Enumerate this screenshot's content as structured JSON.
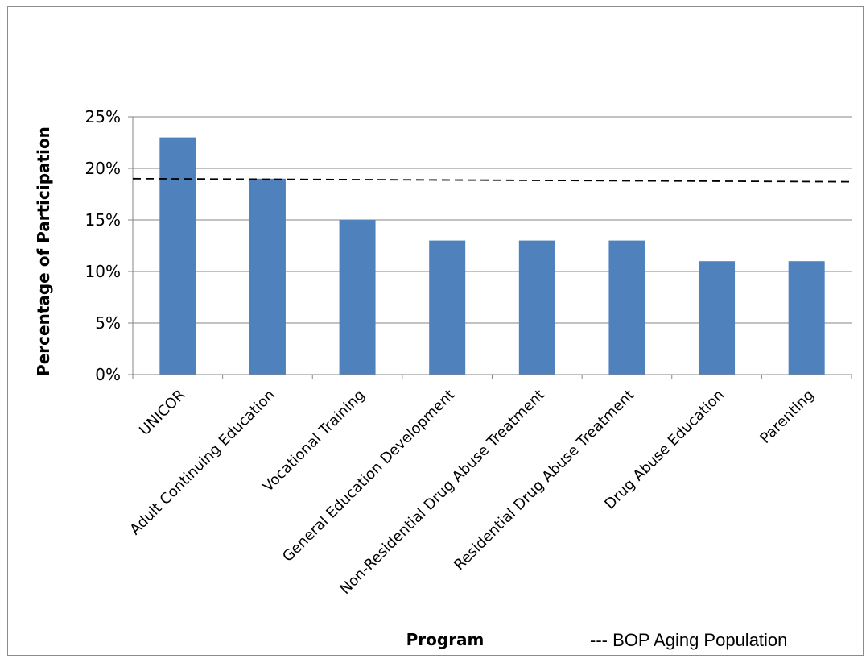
{
  "chart_data": {
    "type": "bar",
    "title": "",
    "xlabel": "Program",
    "ylabel": "Percentage of Participation",
    "categories": [
      "UNICOR",
      "Adult Continuing Education",
      "Vocational Training",
      "General Education Development",
      "Non-Residential Drug Abuse Treatment",
      "Residential Drug Abuse Treatment",
      "Drug Abuse Education",
      "Parenting"
    ],
    "series": [
      {
        "values": [
          23,
          19,
          15,
          13,
          13,
          13,
          11,
          11
        ]
      }
    ],
    "ylim": [
      0,
      25
    ],
    "yticks": [
      0,
      5,
      10,
      15,
      20,
      25
    ],
    "ytick_labels": [
      "0%",
      "5%",
      "10%",
      "15%",
      "20%",
      "25%"
    ],
    "grid": true,
    "bar_color": "#4f81bd",
    "reference_line": {
      "label": "--- BOP Aging Population",
      "value_start": 19,
      "value_end": 18.7,
      "style": "dashed",
      "color": "#000000"
    },
    "legend_position": "bottom-right"
  }
}
